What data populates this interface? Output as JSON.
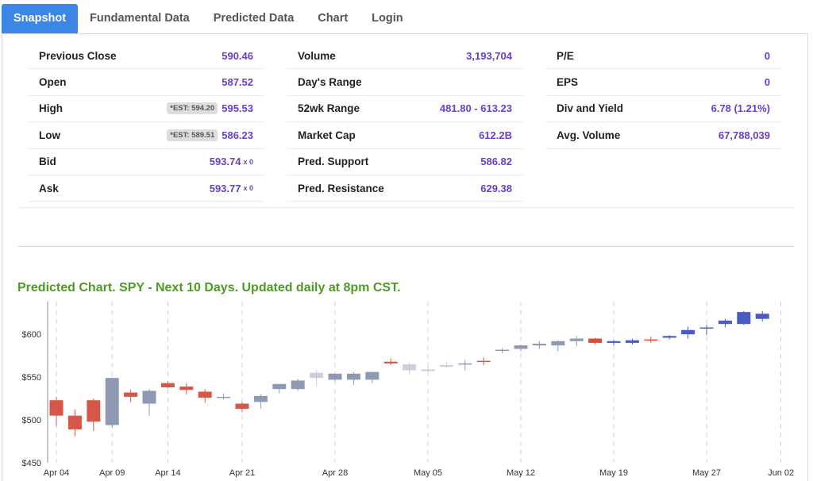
{
  "tabs": [
    {
      "label": "Snapshot",
      "active": true
    },
    {
      "label": "Fundamental Data",
      "active": false
    },
    {
      "label": "Predicted Data",
      "active": false
    },
    {
      "label": "Chart",
      "active": false
    },
    {
      "label": "Login",
      "active": false
    }
  ],
  "snapshot": {
    "col1": [
      {
        "label": "Previous Close",
        "value": "590.46"
      },
      {
        "label": "Open",
        "value": "587.52"
      },
      {
        "label": "High",
        "value": "595.53",
        "est": "*EST: 594.20"
      },
      {
        "label": "Low",
        "value": "586.23",
        "est": "*EST: 589.51"
      },
      {
        "label": "Bid",
        "value": "593.74",
        "suffix": "x 0"
      },
      {
        "label": "Ask",
        "value": "593.77",
        "suffix": "x 0"
      }
    ],
    "col2": [
      {
        "label": "Volume",
        "value": "3,193,704"
      },
      {
        "label": "Day's Range",
        "value": ""
      },
      {
        "label": "52wk Range",
        "value": "481.80 - 613.23"
      },
      {
        "label": "Market Cap",
        "value": "612.2B"
      },
      {
        "label": "Pred. Support",
        "value": "586.82"
      },
      {
        "label": "Pred. Resistance",
        "value": "629.38"
      }
    ],
    "col3": [
      {
        "label": "P/E",
        "value": "0"
      },
      {
        "label": "EPS",
        "value": "0"
      },
      {
        "label": "Div and Yield",
        "value": "6.78 (1.21%)"
      },
      {
        "label": "Avg. Volume",
        "value": "67,788,039"
      }
    ]
  },
  "chart_title": "Predicted Chart. SPY - Next 10 Days. Updated daily at 8pm CST.",
  "colors": {
    "accent": "#3c86e6",
    "value_text": "#6a3fc7",
    "title_green": "#4d9a26",
    "up_hist": "#8e9ab3",
    "down_hist": "#d4574a",
    "up_pred": "#4a5bc4",
    "down_pred": "#e04a3a"
  },
  "chart_data": {
    "type": "candlestick",
    "ylim": [
      450,
      640
    ],
    "yticks": [
      {
        "value": 600,
        "label": "$600"
      },
      {
        "value": 550,
        "label": "$550"
      },
      {
        "value": 500,
        "label": "$500"
      },
      {
        "value": 450,
        "label": "$450"
      }
    ],
    "xticks": [
      {
        "index": 0,
        "label": "Apr 04"
      },
      {
        "index": 3,
        "label": "Apr 09"
      },
      {
        "index": 6,
        "label": "Apr 14"
      },
      {
        "index": 10,
        "label": "Apr 21"
      },
      {
        "index": 15,
        "label": "Apr 28"
      },
      {
        "index": 20,
        "label": "May 05"
      },
      {
        "index": 25,
        "label": "May 12"
      },
      {
        "index": 30,
        "label": "May 19"
      },
      {
        "index": 35,
        "label": "May 27"
      },
      {
        "index": 39,
        "label": "Jun 02"
      }
    ],
    "candles": [
      {
        "o": 523,
        "h": 527,
        "l": 493,
        "c": 505,
        "style": "hist"
      },
      {
        "o": 505,
        "h": 512,
        "l": 481,
        "c": 489,
        "style": "hist"
      },
      {
        "o": 523,
        "h": 525,
        "l": 487,
        "c": 498,
        "style": "hist"
      },
      {
        "o": 494,
        "h": 549,
        "l": 491,
        "c": 549,
        "style": "hist"
      },
      {
        "o": 532,
        "h": 535,
        "l": 521,
        "c": 527,
        "style": "hist"
      },
      {
        "o": 519,
        "h": 536,
        "l": 505,
        "c": 534,
        "style": "hist"
      },
      {
        "o": 543,
        "h": 545,
        "l": 537,
        "c": 538,
        "style": "hist"
      },
      {
        "o": 539,
        "h": 543,
        "l": 530,
        "c": 535,
        "style": "hist"
      },
      {
        "o": 533,
        "h": 536,
        "l": 520,
        "c": 526,
        "style": "hist"
      },
      {
        "o": 527,
        "h": 531,
        "l": 524,
        "c": 527,
        "style": "hist"
      },
      {
        "o": 519,
        "h": 521,
        "l": 509,
        "c": 513,
        "style": "hist"
      },
      {
        "o": 521,
        "h": 530,
        "l": 513,
        "c": 528,
        "style": "hist"
      },
      {
        "o": 536,
        "h": 541,
        "l": 531,
        "c": 542,
        "style": "hist"
      },
      {
        "o": 536,
        "h": 548,
        "l": 534,
        "c": 546,
        "style": "hist"
      },
      {
        "o": 549,
        "h": 558,
        "l": 540,
        "c": 555,
        "style": "ghost"
      },
      {
        "o": 547,
        "h": 554,
        "l": 545,
        "c": 554,
        "style": "hist"
      },
      {
        "o": 547,
        "h": 556,
        "l": 541,
        "c": 554,
        "style": "hist"
      },
      {
        "o": 547,
        "h": 556,
        "l": 543,
        "c": 556,
        "style": "hist"
      },
      {
        "o": 568,
        "h": 572,
        "l": 564,
        "c": 566,
        "style": "hist"
      },
      {
        "o": 558,
        "h": 567,
        "l": 553,
        "c": 565,
        "style": "ghost"
      },
      {
        "o": 557,
        "h": 562,
        "l": 555,
        "c": 559,
        "style": "ghost"
      },
      {
        "o": 562,
        "h": 568,
        "l": 561,
        "c": 564,
        "style": "ghost"
      },
      {
        "o": 566,
        "h": 570,
        "l": 558,
        "c": 566,
        "style": "hist"
      },
      {
        "o": 569,
        "h": 573,
        "l": 564,
        "c": 568,
        "style": "hist"
      },
      {
        "o": 581,
        "h": 584,
        "l": 578,
        "c": 582,
        "style": "hist"
      },
      {
        "o": 583,
        "h": 588,
        "l": 580,
        "c": 587,
        "style": "hist"
      },
      {
        "o": 587,
        "h": 592,
        "l": 583,
        "c": 589,
        "style": "hist"
      },
      {
        "o": 587,
        "h": 593,
        "l": 580,
        "c": 592,
        "style": "hist"
      },
      {
        "o": 592,
        "h": 598,
        "l": 586,
        "c": 595,
        "style": "hist"
      },
      {
        "o": 595,
        "h": 596,
        "l": 588,
        "c": 590,
        "style": "pred"
      },
      {
        "o": 590,
        "h": 593,
        "l": 587,
        "c": 592,
        "style": "pred"
      },
      {
        "o": 590,
        "h": 595,
        "l": 588,
        "c": 593,
        "style": "pred"
      },
      {
        "o": 594,
        "h": 597,
        "l": 590,
        "c": 593,
        "style": "pred"
      },
      {
        "o": 596,
        "h": 599,
        "l": 594,
        "c": 598,
        "style": "pred"
      },
      {
        "o": 600,
        "h": 609,
        "l": 595,
        "c": 605,
        "style": "pred"
      },
      {
        "o": 607,
        "h": 611,
        "l": 599,
        "c": 608,
        "style": "pred"
      },
      {
        "o": 612,
        "h": 618,
        "l": 608,
        "c": 616,
        "style": "pred"
      },
      {
        "o": 612,
        "h": 627,
        "l": 611,
        "c": 626,
        "style": "pred"
      },
      {
        "o": 618,
        "h": 627,
        "l": 615,
        "c": 624,
        "style": "pred"
      }
    ]
  }
}
